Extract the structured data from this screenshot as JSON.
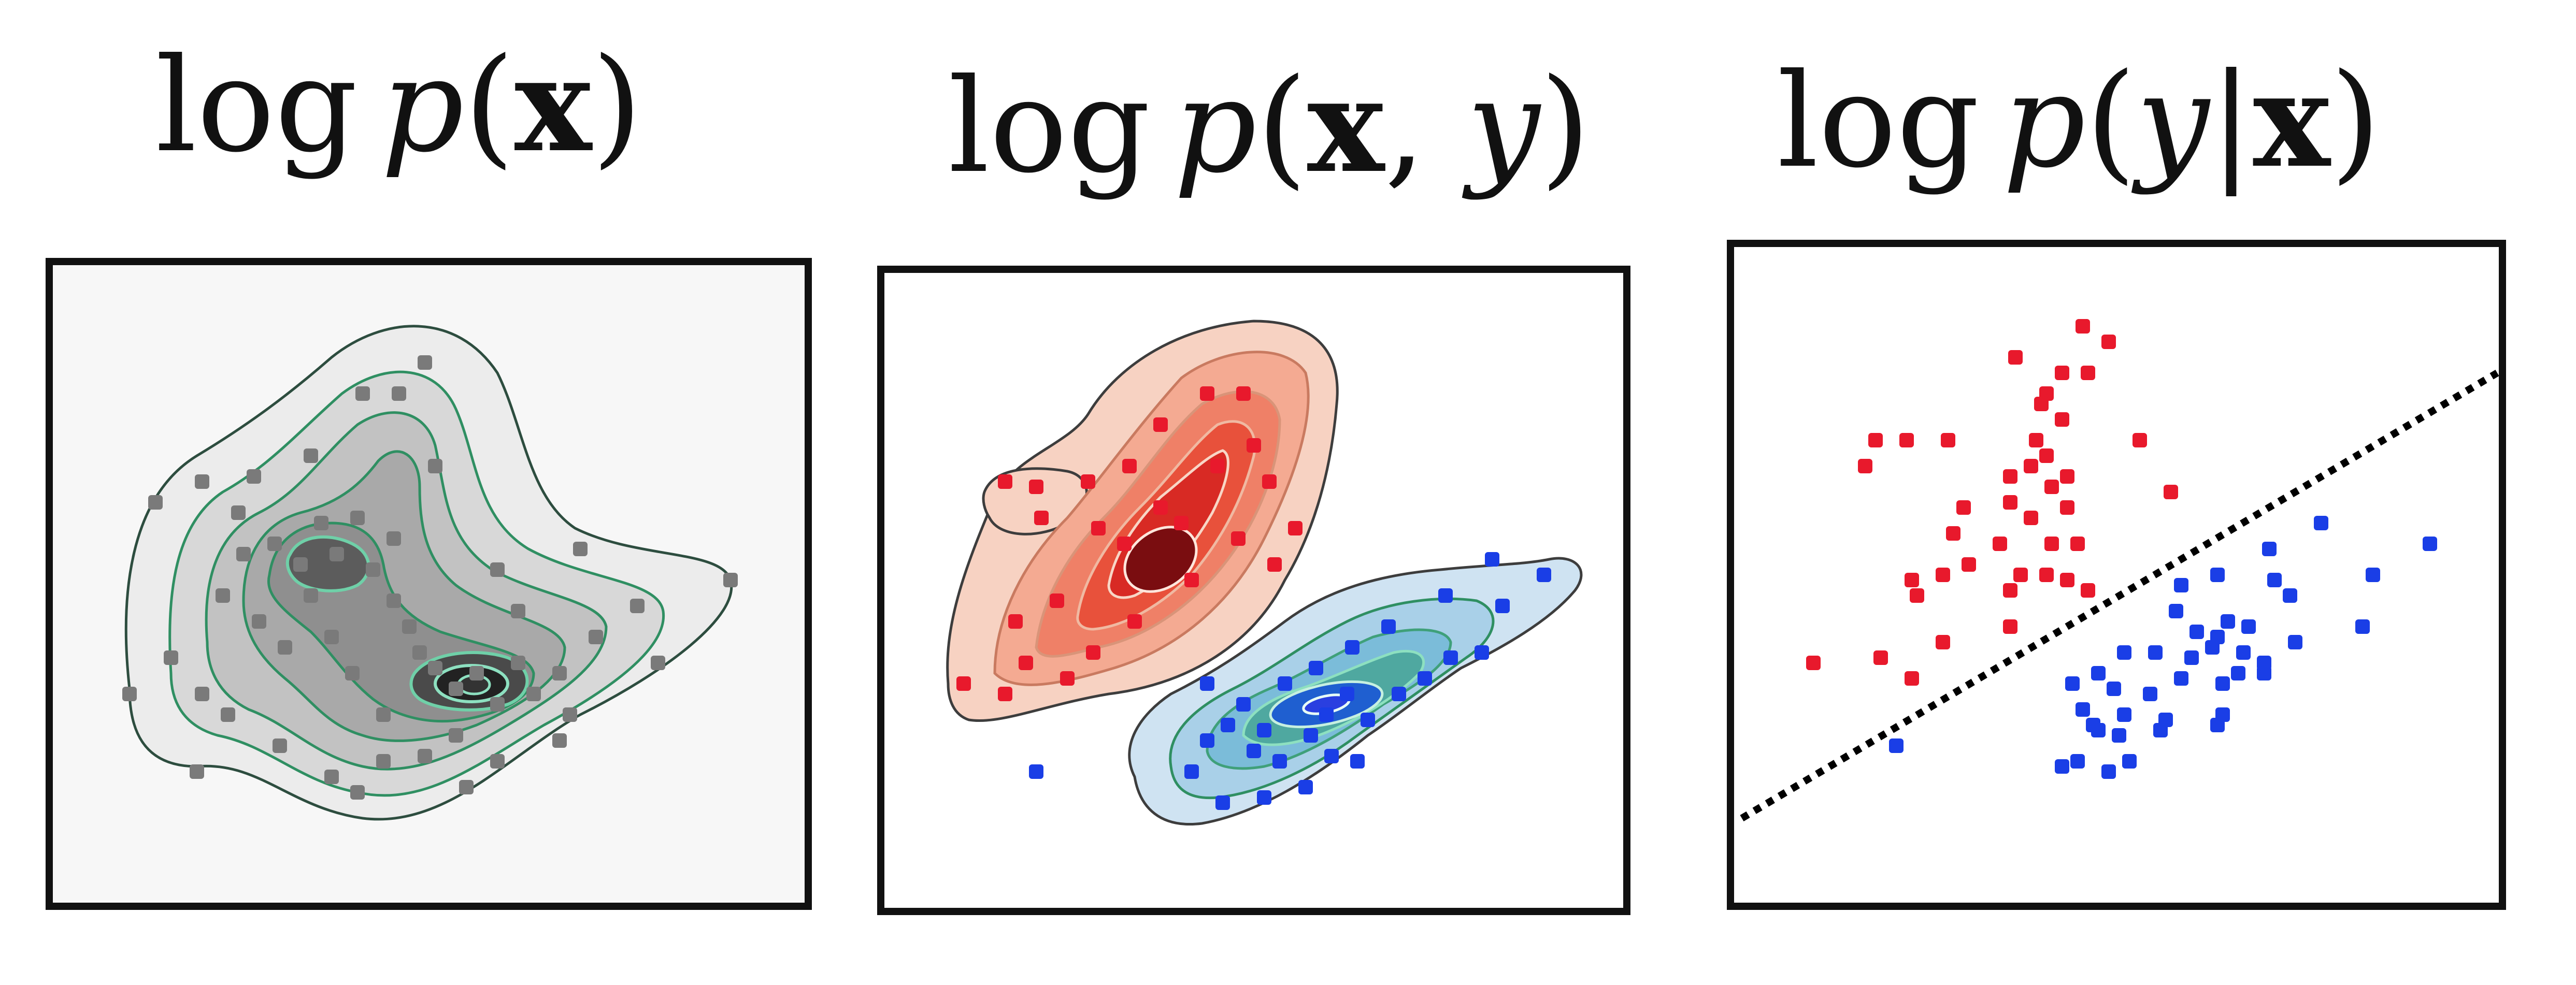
{
  "panels": [
    {
      "id": "marginal",
      "title": {
        "op": "log",
        "fn": "p",
        "open": "(",
        "bold_var": "x",
        "close": ")"
      }
    },
    {
      "id": "joint",
      "title": {
        "op": "log",
        "fn": "p",
        "open": "(",
        "bold_var": "x",
        "sep": ", ",
        "it_var": "y",
        "close": ")"
      }
    },
    {
      "id": "conditional",
      "title": {
        "op": "log",
        "fn": "p",
        "open": "(",
        "it_var": "y",
        "bar": "|",
        "bold_var": "x",
        "close": ")"
      }
    }
  ],
  "colors": {
    "frame": "#111111",
    "panel1_bg": "#f7f7f7",
    "gray_outer": "#ececec",
    "gray_mid": "#c8c8c8",
    "gray_inner": "#8a8a8a",
    "gray_core": "#3b3b3b",
    "contour_green": "#2f8f62",
    "contour_light": "#8de0c0",
    "red_fill_outer": "#f7d2c2",
    "red_fill_mid": "#ef8067",
    "red_fill_core": "#c4151b",
    "blue_fill_outer": "#cfe3f2",
    "blue_fill_mid": "#5aa6c9",
    "blue_fill_core": "#2b9a70",
    "red_point": "#e8192c",
    "blue_point": "#1a3ee6",
    "gray_point": "#7a7a7a",
    "boundary": "#000000"
  }
}
